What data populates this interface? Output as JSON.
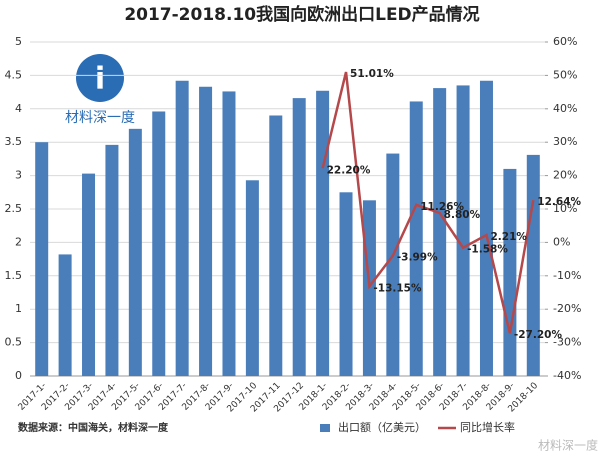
{
  "chart_data": {
    "type": "bar-line",
    "title": "2017-2018.10我国向欧洲出口LED产品情况",
    "logo_text": "材料深一度",
    "source": "数据来源：中国海关，材料深一度",
    "watermark": "材料深一度",
    "categories": [
      "2017-1-",
      "2017-2-",
      "2017-3-",
      "2017-4-",
      "2017-5-",
      "2017-6-",
      "2017-7-",
      "2017-8-",
      "2017-9-",
      "2017-10",
      "2017-11",
      "2017-12",
      "2018-1-",
      "2018-2-",
      "2018-3-",
      "2018-4-",
      "2018-5-",
      "2018-6-",
      "2018-7-",
      "2018-8-",
      "2018-9-",
      "2018-10"
    ],
    "series": [
      {
        "name": "出口额（亿美元）",
        "type": "bar",
        "color": "#4a7ebb",
        "values": [
          3.5,
          1.82,
          3.03,
          3.46,
          3.7,
          3.96,
          4.42,
          4.33,
          4.26,
          2.93,
          3.9,
          4.16,
          4.27,
          2.75,
          2.63,
          3.33,
          4.11,
          4.31,
          4.35,
          4.42,
          3.1,
          3.31
        ]
      },
      {
        "name": "同比增长率",
        "type": "line",
        "axis": "y2",
        "color": "#b5484a",
        "values": [
          null,
          null,
          null,
          null,
          null,
          null,
          null,
          null,
          null,
          null,
          null,
          null,
          22.2,
          51.01,
          -13.15,
          -3.99,
          11.26,
          8.8,
          -1.58,
          2.21,
          -27.2,
          12.64
        ],
        "value_labels": [
          null,
          null,
          null,
          null,
          null,
          null,
          null,
          null,
          null,
          null,
          null,
          null,
          "22.20%",
          "51.01%",
          "-13.15%",
          "-3.99%",
          "11.26%",
          "8.80%",
          "-1.58%",
          "2.21%",
          "-27.20%",
          "12.64%"
        ]
      }
    ],
    "ylim": [
      0,
      5
    ],
    "yticks": [
      0,
      0.5,
      1,
      1.5,
      2,
      2.5,
      3,
      3.5,
      4,
      4.5,
      5
    ],
    "y2lim": [
      -40,
      60
    ],
    "y2ticks": [
      {
        "value": -40,
        "label": "-40%"
      },
      {
        "value": -30,
        "label": "-30%"
      },
      {
        "value": -20,
        "label": "-20%"
      },
      {
        "value": -10,
        "label": "-10%"
      },
      {
        "value": 0,
        "label": "0%"
      },
      {
        "value": 10,
        "label": "10%"
      },
      {
        "value": 20,
        "label": "20%"
      },
      {
        "value": 30,
        "label": "30%"
      },
      {
        "value": 40,
        "label": "40%"
      },
      {
        "value": 50,
        "label": "50%"
      },
      {
        "value": 60,
        "label": "60%"
      }
    ],
    "grid": true
  }
}
